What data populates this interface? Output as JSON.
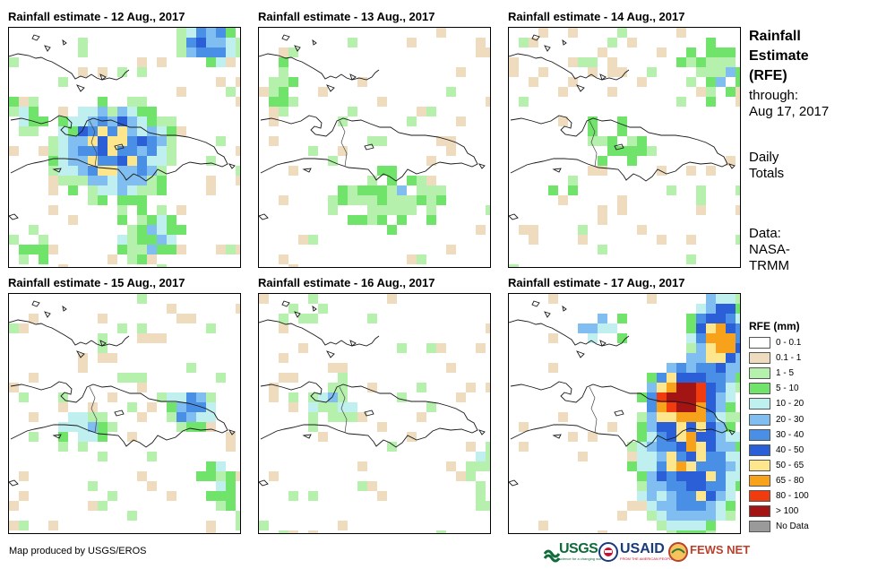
{
  "panels": [
    {
      "title": "Rainfall estimate - 12 Aug., 2017"
    },
    {
      "title": "Rainfall estimate - 13 Aug., 2017"
    },
    {
      "title": "Rainfall estimate - 14 Aug., 2017"
    },
    {
      "title": "Rainfall estimate - 15 Aug., 2017"
    },
    {
      "title": "Rainfall estimate - 16 Aug., 2017"
    },
    {
      "title": "Rainfall estimate - 17 Aug., 2017"
    }
  ],
  "side": {
    "title_lines": [
      "Rainfall",
      "Estimate",
      "(RFE)"
    ],
    "through": "through:",
    "date": "Aug 17, 2017",
    "daily": "Daily",
    "totals": "Totals",
    "data_label": "Data:",
    "source_1": "NASA-",
    "source_2": "TRMM"
  },
  "legend": {
    "title": "RFE (mm)",
    "items": [
      {
        "label": "0 - 0.1",
        "color": "#ffffff"
      },
      {
        "label": "0.1 - 1",
        "color": "#efdcbf"
      },
      {
        "label": "1 - 5",
        "color": "#b6f0ad"
      },
      {
        "label": "5 - 10",
        "color": "#6fe36a"
      },
      {
        "label": "10 - 20",
        "color": "#bfefef"
      },
      {
        "label": "20 - 30",
        "color": "#80bdf1"
      },
      {
        "label": "30 - 40",
        "color": "#4a8fe6"
      },
      {
        "label": "40 - 50",
        "color": "#2a5fd8"
      },
      {
        "label": "50 - 65",
        "color": "#fde68c"
      },
      {
        "label": "65 - 80",
        "color": "#f7a21a"
      },
      {
        "label": "80 - 100",
        "color": "#f03b0e"
      },
      {
        "label": "> 100",
        "color": "#a31414"
      },
      {
        "label": "No Data",
        "color": "#9a9a9a"
      }
    ]
  },
  "credit": "Map produced by USGS/EROS",
  "logos": {
    "usgs": "USGS",
    "usgs_tag": "science for a changing world",
    "usaid": "USAID",
    "usaid_tag": "FROM THE AMERICAN PEOPLE",
    "fews": "FEWS NET"
  }
}
